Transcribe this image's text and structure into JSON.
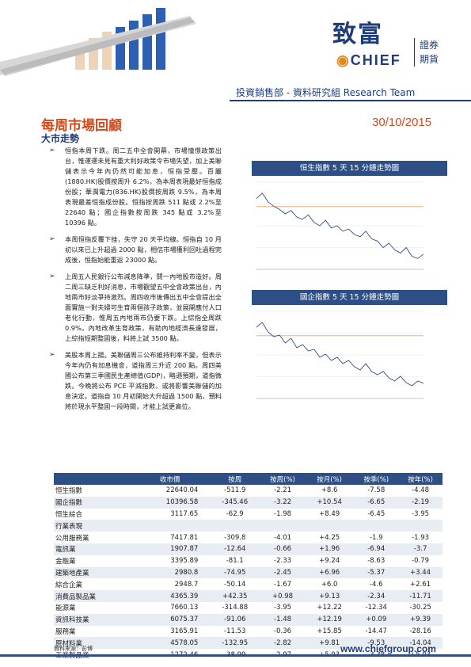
{
  "header": {
    "logo_cn": "致富",
    "logo_en": "CHIEF",
    "logo_sub_1": "證券",
    "logo_sub_2": "期貨",
    "department": "投資銷售部 - 資料研究組 Research Team"
  },
  "report": {
    "title": "每周市場回顧",
    "date": "30/10/2015",
    "section": "大市走勢"
  },
  "bullets": [
    "恒指本周下跌。周二五中全會開幕，市場憧憬政策出台，惟運運未見有重大利好政策令市場失望，加上美聯儲表示今年內仍然可能加息，恒指受壓。百麗(1880.HK)股價按周升 6.2%，為本周表現最好恒指成份股；華潤電力(836.HK)股價按周跌 9.5%，為本周表現最差恒指成份股。恒指按周跌 511 點或 2.2%至 22640 點；國企指數按周跌 345 點或 3.2%至 10396 點。",
    "本周恒指反覆下挫，失守 20 天平均線。恒指自 10 月初以來已上升超過 2000 點，相信市場獲利回吐過程完成後，恒指始能重返 23000 點。",
    "上周五人民銀行公布減息降準，問一內地股市造好。周二周三缺乏利好消息，市場觀望五中全會政策出台，內地兩市好淡爭持激烈。周四收市後傳出五中全會提出全面實施一對夫婦可生育兩個孩子政策，並展開應付人口老化行動，惟周五內地兩市仍要下跌。上綜指全周跌 0.9%。內地改革生育政策，有助內地經濟長遠發展，上綜指短期整固後，料將上試 3500 點。",
    "美股本周上揚。美聯儲周三公布維持利率不變，但表示今年內仍有加息機會，道指周三升近 200 點。周四美國公布第三季國民生產總值(GDP)，略遜預期，道指微跌。今晚將公布 PCE 平減指數，或將影響美聯儲的加息決定。道指自 10 月初開始大升超過 1500 點，預料將於現水平整固一段時間，才能上試更高位。"
  ],
  "charts": [
    {
      "title": "恒生指數 5 天 15 分鐘走勢圖",
      "chart_data": {
        "type": "line",
        "title": "恒生指數 5 天 15 分鐘走勢圖",
        "series": [
          {
            "name": "",
            "values": [
              23150,
              23200,
              23120,
              23080,
              23050,
              23010,
              23040,
              22980,
              22960,
              23000,
              22930,
              22900,
              22950,
              22880,
              22900,
              22850,
              22870,
              22820,
              22800,
              22850,
              22780,
              22760,
              22700,
              22740,
              22680,
              22650,
              22700,
              22620,
              22600,
              22640
            ]
          }
        ],
        "ylim": [
          22500,
          23300
        ]
      }
    },
    {
      "title": "國企指數 5 天 15 分鐘走勢圖",
      "chart_data": {
        "type": "line",
        "title": "國企指數 5 天 15 分鐘走勢圖",
        "series": [
          {
            "name": "",
            "values": [
              10750,
              10780,
              10720,
              10690,
              10700,
              10650,
              10680,
              10620,
              10640,
              10600,
              10610,
              10560,
              10580,
              10540,
              10560,
              10520,
              10540,
              10500,
              10480,
              10520,
              10470,
              10450,
              10470,
              10430,
              10410,
              10440,
              10400,
              10380,
              10410,
              10396
            ]
          }
        ],
        "ylim": [
          10300,
          10850
        ]
      }
    }
  ],
  "table": {
    "headers": [
      "",
      "收市價",
      "按周",
      "按周(%)",
      "按月(%)",
      "按季(%)",
      "按年(%)"
    ],
    "rows": [
      [
        "恒生指數",
        "22640.04",
        "-511.9",
        "-2.21",
        "+8.6",
        "-7.58",
        "-4.48"
      ],
      [
        "國企指數",
        "10396.58",
        "-345.46",
        "-3.22",
        "+10.54",
        "-6.65",
        "-2.19"
      ],
      [
        "恒生綜合",
        "3117.65",
        "-62.9",
        "-1.98",
        "+8.49",
        "-6.45",
        "-3.95"
      ],
      [
        "行業表現",
        "",
        "",
        "",
        "",
        "",
        ""
      ],
      [
        "公用服務業",
        "7417.81",
        "-309.8",
        "-4.01",
        "+4.25",
        "-1.9",
        "-1.93"
      ],
      [
        "電訊業",
        "1907.87",
        "-12.64",
        "-0.66",
        "+1.96",
        "-6.94",
        "-3.7"
      ],
      [
        "金融業",
        "3395.89",
        "-81.1",
        "-2.33",
        "+9.24",
        "-8.63",
        "-0.79"
      ],
      [
        "建築地產業",
        "2980.8",
        "-74.95",
        "-2.45",
        "+6.96",
        "-5.37",
        "+3.44"
      ],
      [
        "綜合企業",
        "2948.7",
        "-50.14",
        "-1.67",
        "+6.0",
        "-4.6",
        "+2.61"
      ],
      [
        "消費品製品業",
        "4365.39",
        "+42.35",
        "+0.98",
        "+9.13",
        "-2.34",
        "-11.71"
      ],
      [
        "能源業",
        "7660.13",
        "-314.88",
        "-3.95",
        "+12.22",
        "-12.34",
        "-30.25"
      ],
      [
        "資訊科技業",
        "6075.37",
        "-91.06",
        "-1.48",
        "+12.19",
        "+0.09",
        "+9.39"
      ],
      [
        "服務業",
        "3165.91",
        "-11.53",
        "-0.36",
        "+15.85",
        "-14.47",
        "-28.16"
      ],
      [
        "原材料業",
        "4578.05",
        "-132.95",
        "-2.82",
        "+9.81",
        "-9.53",
        "-14.04"
      ],
      [
        "工業製品業",
        "1272.46",
        "-38.99",
        "-2.97",
        "+5.93",
        "-3.38",
        "+5.03"
      ]
    ]
  },
  "footer": {
    "source": "資料來源：彭博",
    "url": "www.chiefgroup.com"
  },
  "colors": {
    "brand_navy": "#1e3d7a",
    "title_orange": "#d44a1f",
    "table_header": "#2d4f86"
  }
}
